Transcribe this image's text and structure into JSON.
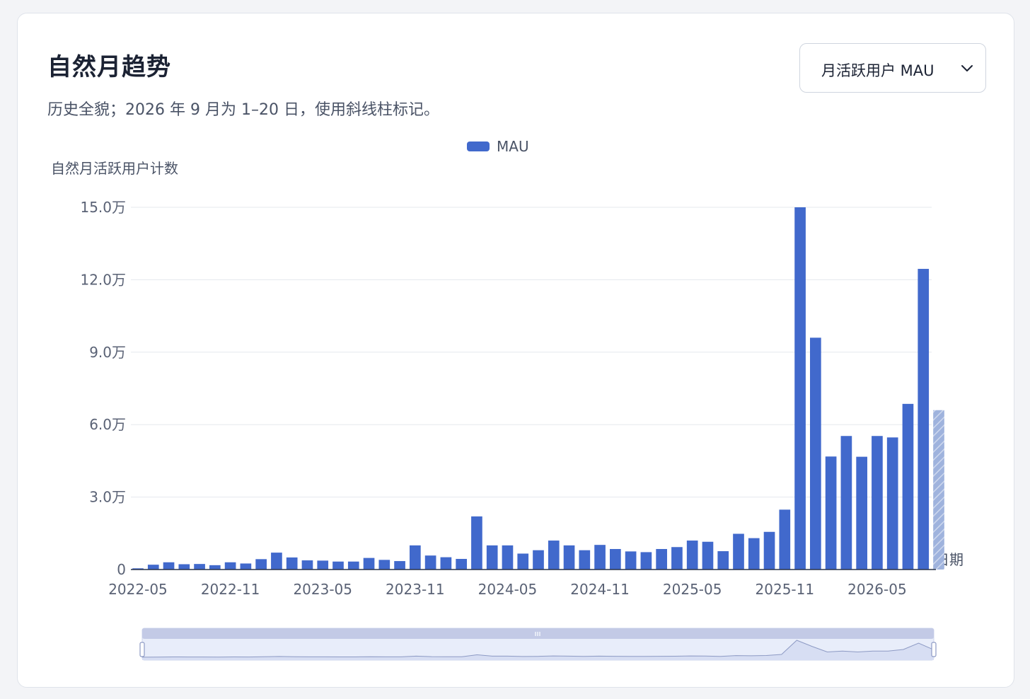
{
  "header": {
    "title": "自然月趋势",
    "subtitle": "历史全貌；2026 年 9 月为 1–20 日，使用斜线柱标记。"
  },
  "metric_select": {
    "selected": "月活跃用户 MAU"
  },
  "colors": {
    "bar": "#4169cc",
    "partial_bar": "#9fb3dd",
    "grid": "#e5e8ee",
    "axis": "#2a3448",
    "zoom_fill": "#e8edfa",
    "zoom_handle_bar": "#c3cae6"
  },
  "chart_data": {
    "type": "bar",
    "title": "",
    "xlabel": "日期",
    "ylabel": "自然月活跃用户计数",
    "legend": [
      "MAU"
    ],
    "legend_position": "top-center",
    "grid": true,
    "ylim": [
      0,
      150000
    ],
    "y_tick_labels": [
      "0",
      "3.0万",
      "6.0万",
      "9.0万",
      "12.0万",
      "15.0万"
    ],
    "x_tick_labels": [
      "2022-05",
      "2022-11",
      "2023-05",
      "2023-11",
      "2024-05",
      "2024-11",
      "2025-05",
      "2025-11",
      "2026-05"
    ],
    "categories": [
      "2022-05",
      "2022-06",
      "2022-07",
      "2022-08",
      "2022-09",
      "2022-10",
      "2022-11",
      "2022-12",
      "2023-01",
      "2023-02",
      "2023-03",
      "2023-04",
      "2023-05",
      "2023-06",
      "2023-07",
      "2023-08",
      "2023-09",
      "2023-10",
      "2023-11",
      "2023-12",
      "2024-01",
      "2024-02",
      "2024-03",
      "2024-04",
      "2024-05",
      "2024-06",
      "2024-07",
      "2024-08",
      "2024-09",
      "2024-10",
      "2024-11",
      "2024-12",
      "2025-01",
      "2025-02",
      "2025-03",
      "2025-04",
      "2025-05",
      "2025-06",
      "2025-07",
      "2025-08",
      "2025-09",
      "2025-10",
      "2025-11",
      "2025-12",
      "2026-01",
      "2026-02",
      "2026-03",
      "2026-04",
      "2026-05",
      "2026-06",
      "2026-07",
      "2026-08",
      "2026-09"
    ],
    "series": [
      {
        "name": "MAU",
        "values": [
          500,
          2000,
          3000,
          2200,
          2300,
          1800,
          3000,
          2500,
          4300,
          7000,
          5000,
          3800,
          3700,
          3300,
          3300,
          4800,
          4000,
          3500,
          10000,
          5800,
          5100,
          4400,
          22000,
          10000,
          10000,
          6600,
          8000,
          12000,
          10000,
          8000,
          10200,
          8500,
          7500,
          7200,
          8500,
          9300,
          12000,
          11500,
          7600,
          14800,
          13000,
          15600,
          24800,
          150000,
          96000,
          46800,
          55300,
          46700,
          55300,
          54700,
          68600,
          124500,
          66000
        ]
      }
    ],
    "partial_last": true
  }
}
